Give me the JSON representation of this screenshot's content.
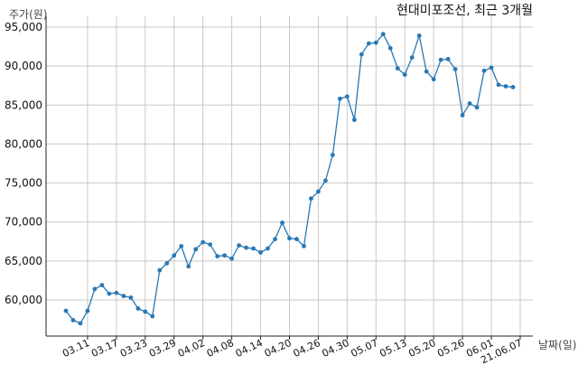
{
  "chart_data": {
    "type": "line",
    "title": "현대미포조선, 최근 3개월",
    "ylabel": "주가(원)",
    "xlabel": "날짜(일)",
    "ylim": [
      55000,
      96000
    ],
    "yticks": [
      60000,
      65000,
      70000,
      75000,
      80000,
      85000,
      90000,
      95000
    ],
    "ytick_labels": [
      "60,000",
      "65,000",
      "70,000",
      "75,000",
      "80,000",
      "85,000",
      "90,000",
      "95,000"
    ],
    "xtick_labels": [
      "03.11",
      "03.17",
      "03.23",
      "03.29",
      "04.02",
      "04.08",
      "04.14",
      "04.20",
      "04.26",
      "04.30",
      "05.07",
      "05.13",
      "05.20",
      "05.26",
      "06.01",
      "21.06.07"
    ],
    "grid": true,
    "line_color": "#2878b5",
    "series": [
      {
        "values": [
          58600,
          57400,
          57000,
          58600,
          61400,
          61900,
          60800,
          60900,
          60500,
          60300,
          58900,
          58500,
          57900,
          63800,
          64700,
          65700,
          66900,
          64300,
          66500,
          67400,
          67100,
          65600,
          65700,
          65300,
          67000,
          66700,
          66600,
          66100,
          66600,
          67800,
          69900,
          67900,
          67800,
          66900,
          73000,
          73900,
          75300,
          78600,
          85800,
          86100,
          83100,
          91500,
          92900,
          93000,
          94100,
          92300,
          89700,
          88900,
          91100,
          93900,
          89300,
          88300,
          90800,
          90900,
          89600,
          83700,
          85200,
          84700,
          89400,
          89800,
          87600,
          87400,
          87300
        ]
      }
    ]
  }
}
